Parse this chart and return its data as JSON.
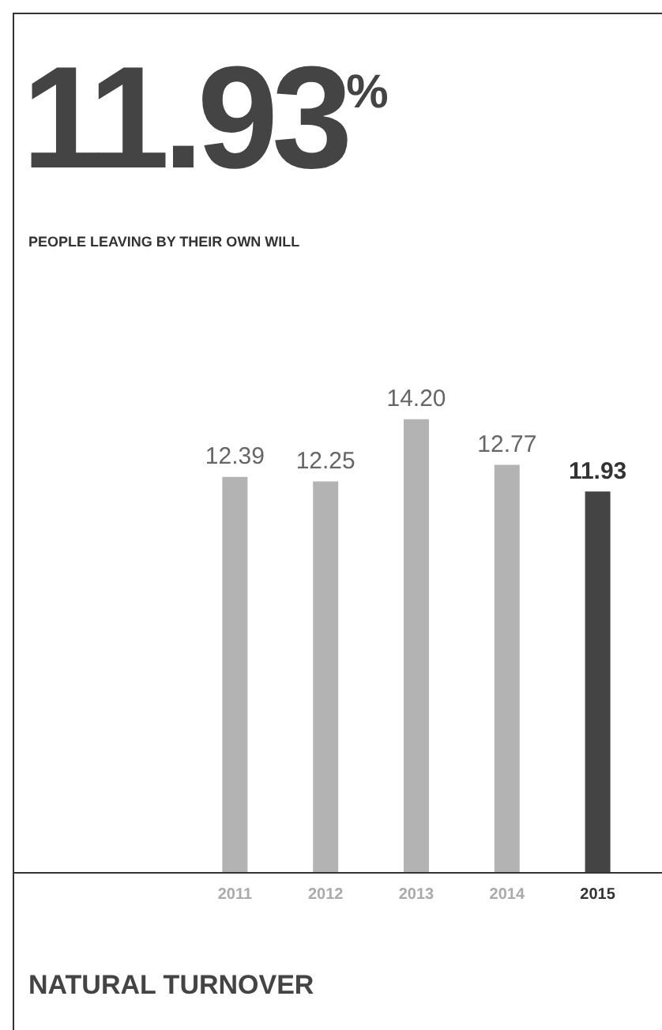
{
  "chart_data": {
    "type": "bar",
    "title": "11.93$^{%}$",
    "subtitle": "PEOPLE LEAVING BY THEIR OWN WILL",
    "categories": [
      "2011",
      "2012",
      "2013",
      "2014",
      "2015"
    ],
    "values": [
      12.39,
      12.25,
      14.2,
      12.77,
      11.93
    ],
    "value_labels": [
      "12.39",
      "12.25",
      "14.20",
      "12.77",
      "11.93"
    ],
    "colors": [
      "#b3b3b3",
      "#b3b3b3",
      "#b3b3b3",
      "#b3b3b3",
      "#444444"
    ],
    "tick_labels": "x",
    "grid": false,
    "legend": false,
    "annotations": [
      "NATURAL TURNOVER"
    ]
  }
}
